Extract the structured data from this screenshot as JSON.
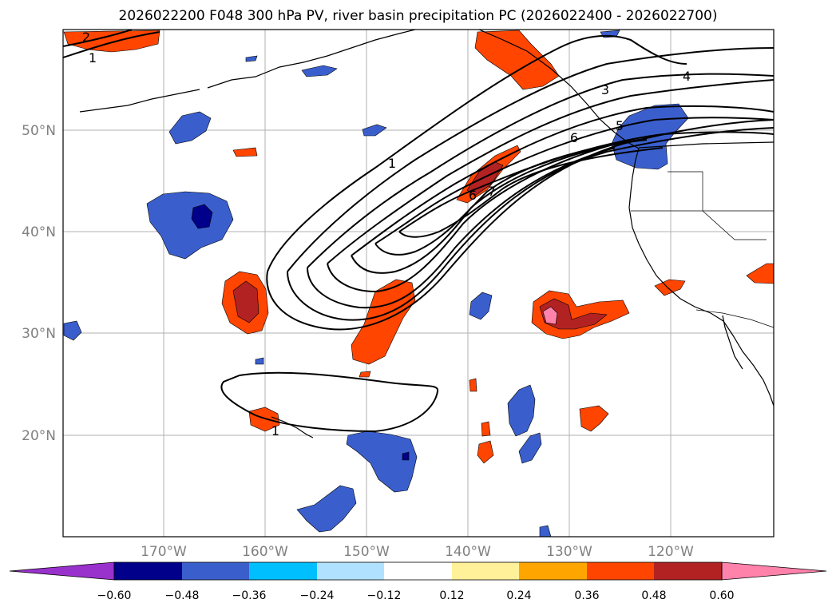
{
  "title": "2026022200 F048 300 hPa PV, river basin precipitation PC (2026022400 - 2026022700)",
  "lat_labels": [
    "50°N",
    "40°N",
    "30°N",
    "20°N"
  ],
  "lon_labels": [
    "170°W",
    "160°W",
    "150°W",
    "140°W",
    "130°W",
    "120°W"
  ],
  "colorbar": {
    "colors": [
      "#9932cc",
      "#00008b",
      "#3a5fcd",
      "#00bfff",
      "#b0e2ff",
      "#ffffff",
      "#fff09a",
      "#ffa500",
      "#ff4500",
      "#b22222",
      "#ff82ab"
    ],
    "tick_labels": [
      "−0.60",
      "−0.48",
      "−0.36",
      "−0.24",
      "−0.12",
      "0.12",
      "0.24",
      "0.36",
      "0.48",
      "0.60"
    ]
  },
  "pv_contour_labels": [
    "1",
    "1",
    "1",
    "2",
    "3",
    "4",
    "5",
    "6",
    "6",
    "7"
  ],
  "colors": {
    "grid": "#b0b0b0",
    "axis": "#000000",
    "coast": "#000000"
  }
}
